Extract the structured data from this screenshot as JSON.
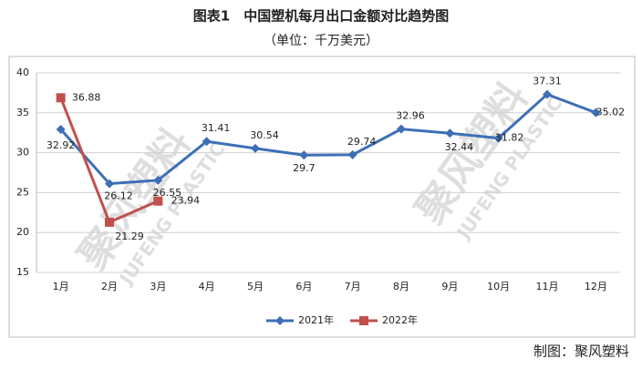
{
  "chart_data": {
    "type": "line",
    "title": "图表1　中国塑机每月出口金额对比趋势图",
    "subtitle": "（单位：千万美元）",
    "footer": "制图：聚风塑料",
    "watermark": "聚风塑料",
    "watermark_en": "JUFENG PLASTIC",
    "categories": [
      "1月",
      "2月",
      "3月",
      "4月",
      "5月",
      "6月",
      "7月",
      "8月",
      "9月",
      "10月",
      "11月",
      "12月"
    ],
    "series": [
      {
        "name": "2021年",
        "color": "#3d6fb6",
        "marker": "diamond",
        "values": [
          32.92,
          26.12,
          26.55,
          31.41,
          30.54,
          29.7,
          29.74,
          32.96,
          32.44,
          31.82,
          37.31,
          35.02
        ]
      },
      {
        "name": "2022年",
        "color": "#c0504d",
        "marker": "square",
        "values": [
          36.88,
          21.29,
          23.94,
          null,
          null,
          null,
          null,
          null,
          null,
          null,
          null,
          null
        ]
      }
    ],
    "ylim": [
      15,
      40
    ],
    "yticks": [
      15,
      20,
      25,
      30,
      35,
      40
    ],
    "grid": true,
    "legend": "bottom"
  }
}
